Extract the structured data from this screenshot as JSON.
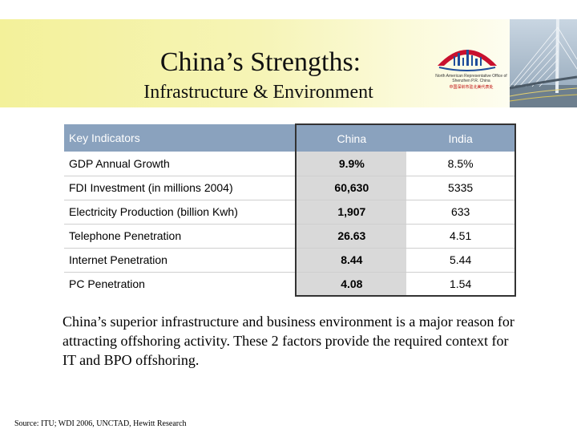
{
  "slide": {
    "title": "China’s Strengths:",
    "subtitle": "Infrastructure &  Environment"
  },
  "logo": {
    "text_en": "North American Representative Office of Shenzhen P.R. China",
    "text_zh": "中国深圳市驻北美代表处",
    "colors": {
      "red": "#c8102e",
      "blue": "#1f4e9b"
    }
  },
  "table": {
    "headers": {
      "indicator": "Key Indicators",
      "china": "China",
      "india": "India"
    },
    "rows": [
      {
        "indicator": "GDP Annual Growth",
        "china": "9.9%",
        "india": "8.5%"
      },
      {
        "indicator": "FDI Investment (in millions 2004)",
        "china": "60,630",
        "india": "5335"
      },
      {
        "indicator": "Electricity Production (billion Kwh)",
        "china": "1,907",
        "india": "633"
      },
      {
        "indicator": "Telephone Penetration",
        "china": "26.63",
        "india": "4.51"
      },
      {
        "indicator": "Internet Penetration",
        "china": "8.44",
        "india": "5.44"
      },
      {
        "indicator": "PC Penetration",
        "china": "4.08",
        "india": "1.54"
      }
    ]
  },
  "paragraph": "China’s superior infrastructure and business environment is a major reason for attracting offshoring activity. These 2 factors provide the required context for IT and BPO offshoring.",
  "source": "Source: ITU; WDI 2006, UNCTAD, Hewitt Research",
  "colors": {
    "header_band": "#f3f19a",
    "table_header": "#8aa2be",
    "china_col": "#d9d9d9"
  }
}
